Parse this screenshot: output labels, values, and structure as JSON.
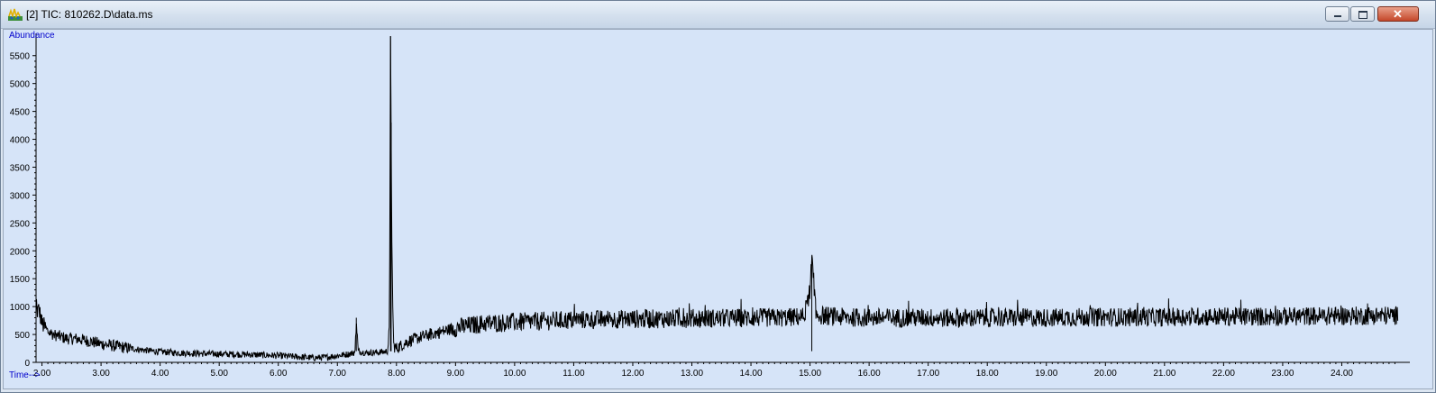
{
  "window": {
    "title": "[2] TIC: 810262.D\\data.ms",
    "icon": "chromatogram-app-icon"
  },
  "colors": {
    "plot_bg": "#d6e4f8",
    "trace": "#000000",
    "axis_label": "#0000cc"
  },
  "chart_data": {
    "type": "line",
    "title": "",
    "ylabel": "Abundance",
    "xlabel": "Time-->",
    "xlim": [
      1.9,
      25.0
    ],
    "ylim": [
      0,
      5900
    ],
    "x_ticks": [
      "2.00",
      "3.00",
      "4.00",
      "5.00",
      "6.00",
      "7.00",
      "8.00",
      "9.00",
      "10.00",
      "11.00",
      "12.00",
      "13.00",
      "14.00",
      "15.00",
      "16.00",
      "17.00",
      "18.00",
      "19.00",
      "20.00",
      "21.00",
      "22.00",
      "23.00",
      "24.00"
    ],
    "y_ticks": [
      "0",
      "500",
      "1000",
      "1500",
      "2000",
      "2500",
      "3000",
      "3500",
      "4000",
      "4500",
      "5000",
      "5500"
    ],
    "series": [
      {
        "name": "",
        "points": [
          [
            1.9,
            900
          ],
          [
            1.95,
            950
          ],
          [
            2.0,
            700
          ],
          [
            2.1,
            550
          ],
          [
            2.2,
            500
          ],
          [
            2.4,
            430
          ],
          [
            2.6,
            420
          ],
          [
            2.8,
            380
          ],
          [
            3.0,
            330
          ],
          [
            3.2,
            300
          ],
          [
            3.5,
            250
          ],
          [
            3.8,
            210
          ],
          [
            4.0,
            190
          ],
          [
            4.3,
            170
          ],
          [
            4.6,
            160
          ],
          [
            5.0,
            150
          ],
          [
            5.5,
            140
          ],
          [
            6.0,
            120
          ],
          [
            6.3,
            100
          ],
          [
            6.6,
            80
          ],
          [
            6.8,
            90
          ],
          [
            7.0,
            120
          ],
          [
            7.2,
            150
          ],
          [
            7.3,
            180
          ],
          [
            7.32,
            800
          ],
          [
            7.35,
            200
          ],
          [
            7.5,
            170
          ],
          [
            7.7,
            180
          ],
          [
            7.85,
            200
          ],
          [
            7.88,
            600
          ],
          [
            7.9,
            5850
          ],
          [
            7.91,
            4300
          ],
          [
            7.92,
            2200
          ],
          [
            7.95,
            300
          ],
          [
            8.0,
            250
          ],
          [
            8.2,
            380
          ],
          [
            8.5,
            480
          ],
          [
            8.8,
            560
          ],
          [
            9.0,
            620
          ],
          [
            9.5,
            700
          ],
          [
            10.0,
            720
          ],
          [
            10.5,
            740
          ],
          [
            11.0,
            760
          ],
          [
            11.5,
            770
          ],
          [
            12.0,
            780
          ],
          [
            12.5,
            780
          ],
          [
            13.0,
            790
          ],
          [
            13.5,
            790
          ],
          [
            14.0,
            800
          ],
          [
            14.5,
            800
          ],
          [
            14.9,
            820
          ],
          [
            15.0,
            1300
          ],
          [
            15.03,
            1900
          ],
          [
            15.06,
            1500
          ],
          [
            15.1,
            850
          ],
          [
            15.5,
            810
          ],
          [
            16.0,
            800
          ],
          [
            16.5,
            800
          ],
          [
            17.0,
            800
          ],
          [
            17.5,
            790
          ],
          [
            18.0,
            800
          ],
          [
            18.5,
            800
          ],
          [
            19.0,
            800
          ],
          [
            19.5,
            810
          ],
          [
            20.0,
            810
          ],
          [
            20.5,
            810
          ],
          [
            21.0,
            810
          ],
          [
            21.5,
            820
          ],
          [
            22.0,
            820
          ],
          [
            22.5,
            820
          ],
          [
            23.0,
            820
          ],
          [
            23.5,
            830
          ],
          [
            24.0,
            830
          ],
          [
            24.5,
            840
          ],
          [
            24.95,
            840
          ]
        ]
      }
    ]
  }
}
